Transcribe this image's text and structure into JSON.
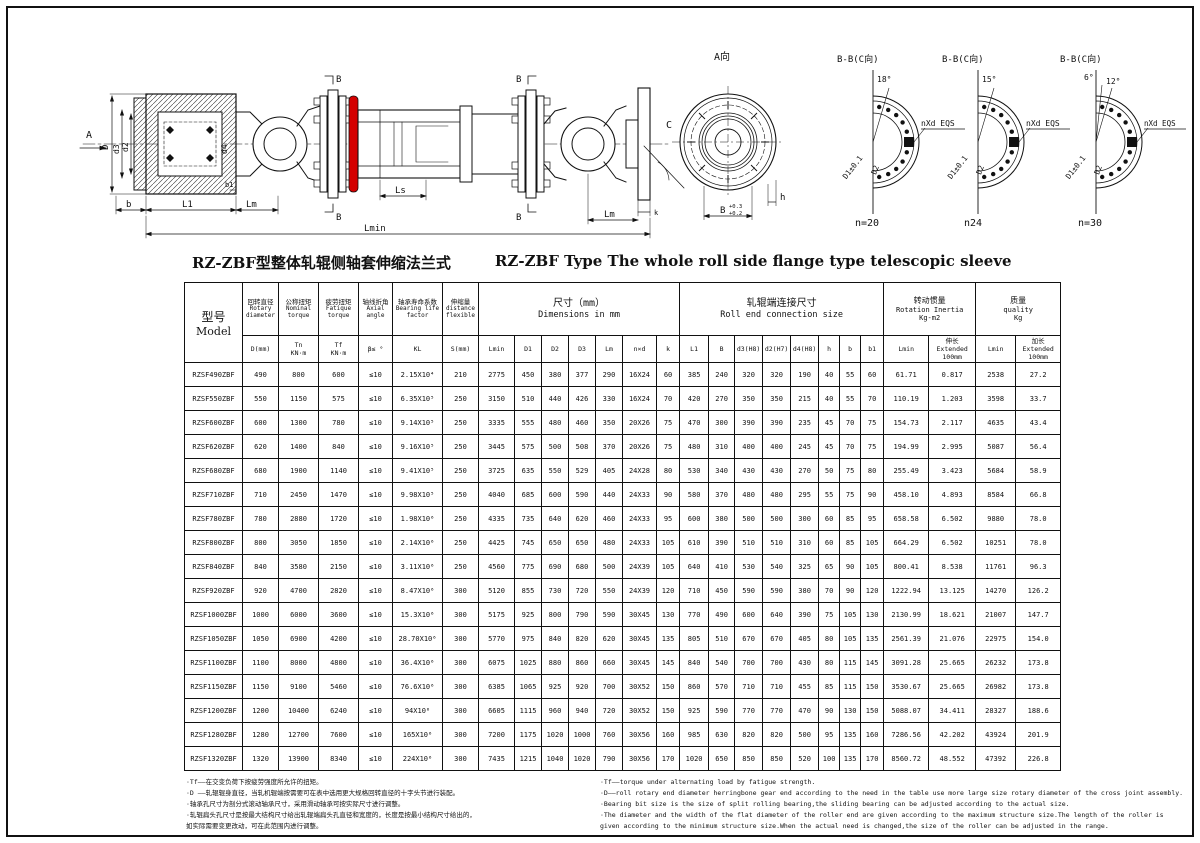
{
  "titles": {
    "zh": "RZ-ZBF型整体轧辊侧轴套伸缩法兰式",
    "en": "RZ-ZBF Type The whole roll side flange type telescopic sleeve"
  },
  "drawing": {
    "accent": "#d40000",
    "labels": {
      "A": "A",
      "D": "D",
      "d3": "d3",
      "d2": "d2",
      "d4": "d4",
      "b": "b",
      "L1": "L1",
      "Lm": "Lm",
      "b1": "b1",
      "B": "B",
      "D3": "D3",
      "Ls": "Ls",
      "k": "k",
      "C": "C",
      "Lmin": "Lmin",
      "h": "h",
      "a_view": "A向",
      "bb_view": "B-B(C向)",
      "deg18": "18°",
      "deg15": "15°",
      "deg6": "6°",
      "deg12": "12°",
      "d1_tol": "D1±0.1",
      "d2_label": "D2",
      "nxd": "nXd EQS",
      "n20": "n=20",
      "n24": "n24",
      "n30": "n=30",
      "b_dim": "B",
      "tol_top": "+0.3",
      "tol_bot": "+0.2"
    }
  },
  "table": {
    "model": {
      "zh": "型号",
      "en": "Model"
    },
    "groups": [
      {
        "zh": "回转直径",
        "en": "Rotary diameter",
        "sub": "D(mm)"
      },
      {
        "zh": "公称扭矩",
        "en": "Nominal torque",
        "sub": "Tn\nKN·m"
      },
      {
        "zh": "疲劳扭矩",
        "en": "Fatique torque",
        "sub": "Tf\nKN·m"
      },
      {
        "zh": "轴线折角",
        "en": "Axial angle",
        "sub": "β≤ °"
      },
      {
        "zh": "轴承寿命系数",
        "en": "Bearing life factor",
        "sub": "KL"
      },
      {
        "zh": "伸缩量",
        "en": "distance flexible",
        "sub": "S(mm)"
      },
      {
        "zh": "尺寸（mm）",
        "en": "Dimensions in mm",
        "subs": [
          "Lmin",
          "D1",
          "D2",
          "D3",
          "Lm",
          "n×d",
          "k"
        ]
      },
      {
        "zh": "轧辊端连接尺寸",
        "en": "Roll end connection size",
        "subs": [
          "L1",
          "B",
          "d3(H8)",
          "d2(H7)",
          "d4(H8)",
          "h",
          "b",
          "b1"
        ]
      },
      {
        "zh": "转动惯量",
        "en": "Rotation Inertia",
        "unit": "Kg-m2",
        "subs": [
          "Lmin",
          "伸长\nExtended\n100mm"
        ]
      },
      {
        "zh": "质量",
        "en": "quality",
        "unit": "Kg",
        "subs": [
          "Lmin",
          "加长\nExtended\n100mm"
        ]
      }
    ],
    "rows": [
      [
        "RZSF490ZBF",
        "490",
        "800",
        "600",
        "≤10",
        "2.15X10⁴",
        "210",
        "2775",
        "450",
        "380",
        "377",
        "290",
        "16X24",
        "60",
        "385",
        "240",
        "320",
        "320",
        "190",
        "40",
        "55",
        "60",
        "61.71",
        "0.817",
        "2538",
        "27.2"
      ],
      [
        "RZSF550ZBF",
        "550",
        "1150",
        "575",
        "≤10",
        "6.35X10⁵",
        "250",
        "3150",
        "510",
        "440",
        "426",
        "330",
        "16X24",
        "70",
        "420",
        "270",
        "350",
        "350",
        "215",
        "40",
        "55",
        "70",
        "110.19",
        "1.203",
        "3598",
        "33.7"
      ],
      [
        "RZSF600ZBF",
        "600",
        "1300",
        "780",
        "≤10",
        "9.14X10⁵",
        "250",
        "3335",
        "555",
        "480",
        "460",
        "350",
        "20X26",
        "75",
        "470",
        "300",
        "390",
        "390",
        "235",
        "45",
        "70",
        "75",
        "154.73",
        "2.117",
        "4635",
        "43.4"
      ],
      [
        "RZSF620ZBF",
        "620",
        "1400",
        "840",
        "≤10",
        "9.16X10⁵",
        "250",
        "3445",
        "575",
        "500",
        "508",
        "370",
        "20X26",
        "75",
        "480",
        "310",
        "400",
        "400",
        "245",
        "45",
        "70",
        "75",
        "194.99",
        "2.995",
        "5087",
        "56.4"
      ],
      [
        "RZSF680ZBF",
        "680",
        "1900",
        "1140",
        "≤10",
        "9.41X10⁵",
        "250",
        "3725",
        "635",
        "550",
        "529",
        "405",
        "24X28",
        "80",
        "530",
        "340",
        "430",
        "430",
        "270",
        "50",
        "75",
        "80",
        "255.49",
        "3.423",
        "5684",
        "58.9"
      ],
      [
        "RZSF710ZBF",
        "710",
        "2450",
        "1470",
        "≤10",
        "9.98X10⁵",
        "250",
        "4040",
        "685",
        "600",
        "590",
        "440",
        "24X33",
        "90",
        "580",
        "370",
        "480",
        "480",
        "295",
        "55",
        "75",
        "90",
        "458.10",
        "4.893",
        "8584",
        "66.8"
      ],
      [
        "RZSF780ZBF",
        "780",
        "2880",
        "1720",
        "≤10",
        "1.98X10⁶",
        "250",
        "4335",
        "735",
        "640",
        "620",
        "460",
        "24X33",
        "95",
        "600",
        "380",
        "500",
        "500",
        "300",
        "60",
        "85",
        "95",
        "658.58",
        "6.502",
        "9880",
        "78.0"
      ],
      [
        "RZSF800ZBF",
        "800",
        "3050",
        "1850",
        "≤10",
        "2.14X10⁶",
        "250",
        "4425",
        "745",
        "650",
        "650",
        "480",
        "24X33",
        "105",
        "610",
        "390",
        "510",
        "510",
        "310",
        "60",
        "85",
        "105",
        "664.29",
        "6.502",
        "10251",
        "78.0"
      ],
      [
        "RZSF840ZBF",
        "840",
        "3580",
        "2150",
        "≤10",
        "3.11X10⁶",
        "250",
        "4560",
        "775",
        "690",
        "680",
        "500",
        "24X39",
        "105",
        "640",
        "410",
        "530",
        "540",
        "325",
        "65",
        "90",
        "105",
        "800.41",
        "8.538",
        "11761",
        "96.3"
      ],
      [
        "RZSF920ZBF",
        "920",
        "4700",
        "2820",
        "≤10",
        "8.47X10⁶",
        "300",
        "5120",
        "855",
        "730",
        "720",
        "550",
        "24X39",
        "120",
        "710",
        "450",
        "590",
        "590",
        "380",
        "70",
        "90",
        "120",
        "1222.94",
        "13.125",
        "14270",
        "126.2"
      ],
      [
        "RZSF1000ZBF",
        "1000",
        "6000",
        "3600",
        "≤10",
        "15.3X10⁶",
        "300",
        "5175",
        "925",
        "800",
        "790",
        "590",
        "30X45",
        "130",
        "770",
        "490",
        "600",
        "640",
        "390",
        "75",
        "105",
        "130",
        "2130.99",
        "18.621",
        "21007",
        "147.7"
      ],
      [
        "RZSF1050ZBF",
        "1050",
        "6900",
        "4200",
        "≤10",
        "28.70X10⁶",
        "300",
        "5770",
        "975",
        "840",
        "820",
        "620",
        "30X45",
        "135",
        "805",
        "510",
        "670",
        "670",
        "405",
        "80",
        "105",
        "135",
        "2561.39",
        "21.076",
        "22975",
        "154.0"
      ],
      [
        "RZSF1100ZBF",
        "1100",
        "8000",
        "4800",
        "≤10",
        "36.4X10⁶",
        "300",
        "6075",
        "1025",
        "880",
        "860",
        "660",
        "30X45",
        "145",
        "840",
        "540",
        "700",
        "700",
        "430",
        "80",
        "115",
        "145",
        "3091.28",
        "25.665",
        "26232",
        "173.8"
      ],
      [
        "RZSF1150ZBF",
        "1150",
        "9100",
        "5460",
        "≤10",
        "76.6X10⁶",
        "300",
        "6385",
        "1065",
        "925",
        "920",
        "700",
        "30X52",
        "150",
        "860",
        "570",
        "710",
        "710",
        "455",
        "85",
        "115",
        "150",
        "3530.67",
        "25.665",
        "26982",
        "173.8"
      ],
      [
        "RZSF1200ZBF",
        "1200",
        "10400",
        "6240",
        "≤10",
        "94X10⁶",
        "300",
        "6605",
        "1115",
        "960",
        "940",
        "720",
        "30X52",
        "150",
        "925",
        "590",
        "770",
        "770",
        "470",
        "90",
        "130",
        "150",
        "5088.07",
        "34.411",
        "28327",
        "188.6"
      ],
      [
        "RZSF1280ZBF",
        "1280",
        "12700",
        "7600",
        "≤10",
        "165X10⁶",
        "300",
        "7200",
        "1175",
        "1020",
        "1000",
        "760",
        "30X56",
        "160",
        "985",
        "630",
        "820",
        "820",
        "500",
        "95",
        "135",
        "160",
        "7286.56",
        "42.202",
        "43924",
        "201.9"
      ],
      [
        "RZSF1320ZBF",
        "1320",
        "13900",
        "8340",
        "≤10",
        "224X10⁶",
        "300",
        "7435",
        "1215",
        "1040",
        "1020",
        "790",
        "30X56",
        "170",
        "1020",
        "650",
        "850",
        "850",
        "520",
        "100",
        "135",
        "170",
        "8560.72",
        "48.552",
        "47392",
        "226.8"
      ]
    ]
  },
  "notes": {
    "zh": [
      "·Tf——在交变负荷下按疲劳强度所允许的扭矩。",
      "·D ——轧辊辊身直径，当轧机辊端按需要可在表中选用更大规格回转直径的十字头节进行装配。",
      "·轴承孔尺寸为剖分式滚动轴承尺寸，采用滑动轴承可按实际尺寸进行调整。",
      "·轧辊扁头孔尺寸是按最大结构尺寸给出轧辊端扁头孔直径和宽度的，长度是按最小结构尺寸给出的，",
      "如实际需要变更改动，可在此范围内进行调整。"
    ],
    "en": [
      "·Tf——torque under alternating load by fatigue strength.",
      "·D——roll rotary end diameter herringbone gear end according to the need in the table use more large size rotary diameter of the cross joint assembly.",
      "·Bearing bit size is the size of split rolling bearing,the sliding bearing can be adjusted according to the actual size.",
      "·The diameter and the width of the flat diameter of the roller end are given according to the maximum structure size.The length of the roller is",
      "given according to the minimum structure size.When the actual need is changed,the size of the roller can be adjusted in the range."
    ]
  }
}
